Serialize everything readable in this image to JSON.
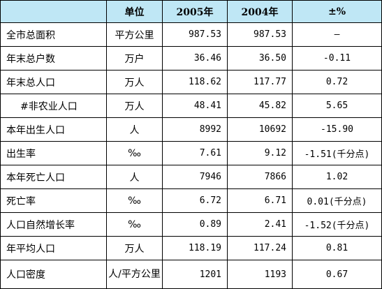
{
  "header": {
    "col0": "",
    "unit": "单位",
    "year_2005": "2005年",
    "year_2004": "2004年",
    "change": "±%"
  },
  "rows": [
    {
      "name": "全市总面积",
      "unit": "平方公里",
      "v2005": "987.53",
      "v2004": "987.53",
      "change": "—"
    },
    {
      "name": "年末总户数",
      "unit": "万户",
      "v2005": "36.46",
      "v2004": "36.50",
      "change": "-0.11"
    },
    {
      "name": "年末总人口",
      "unit": "万人",
      "v2005": "118.62",
      "v2004": "117.77",
      "change": "0.72"
    },
    {
      "name": "#非农业人口",
      "unit": "万人",
      "v2005": "48.41",
      "v2004": "45.82",
      "change": "5.65"
    },
    {
      "name": "本年出生人口",
      "unit": "人",
      "v2005": "8992",
      "v2004": "10692",
      "change": "-15.90"
    },
    {
      "name": "出生率",
      "unit": "‰",
      "v2005": "7.61",
      "v2004": "9.12",
      "change": "-1.51(千分点)"
    },
    {
      "name": "本年死亡人口",
      "unit": "人",
      "v2005": "7946",
      "v2004": "7866",
      "change": "1.02"
    },
    {
      "name": "死亡率",
      "unit": "‰",
      "v2005": "6.72",
      "v2004": "6.71",
      "change": "0.01(千分点)"
    },
    {
      "name": "人口自然增长率",
      "unit": "‰",
      "v2005": "0.89",
      "v2004": "2.41",
      "change": "-1.52(千分点)"
    },
    {
      "name": "年平均人口",
      "unit": "万人",
      "v2005": "118.19",
      "v2004": "117.24",
      "change": "0.81"
    },
    {
      "name": "人口密度",
      "unit": "人/平方公里",
      "v2005": "1201",
      "v2004": "1193",
      "change": "0.67"
    }
  ]
}
